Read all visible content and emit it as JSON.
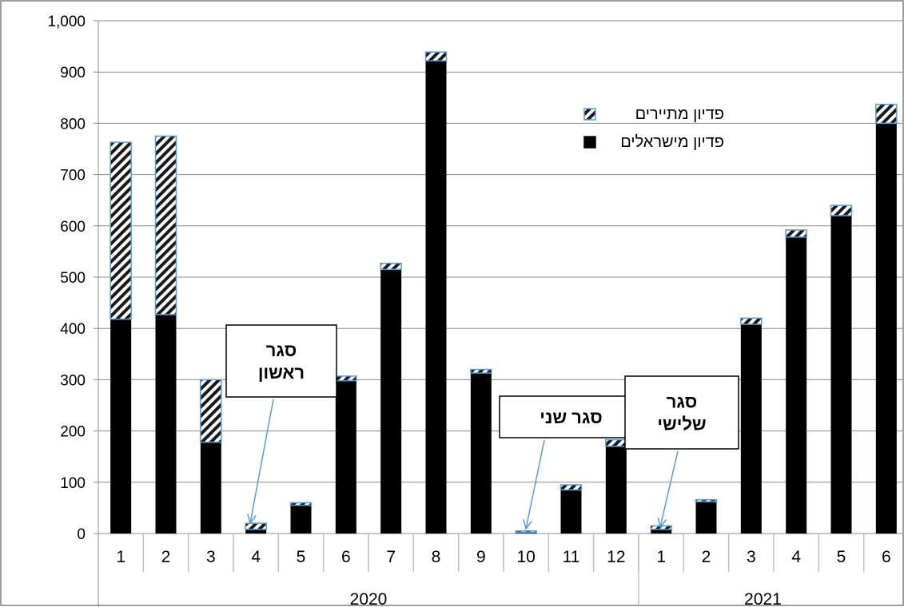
{
  "chart_data": {
    "type": "bar",
    "stacked": true,
    "categories": [
      "1",
      "2",
      "3",
      "4",
      "5",
      "6",
      "7",
      "8",
      "9",
      "10",
      "11",
      "12",
      "1",
      "2",
      "3",
      "4",
      "5",
      "6"
    ],
    "groups": [
      {
        "label": "2020",
        "count": 12
      },
      {
        "label": "2021",
        "count": 6
      }
    ],
    "series": [
      {
        "name": "פדיון מישראלים",
        "color": "#000000",
        "pattern": "solid",
        "values": [
          418,
          427,
          178,
          8,
          55,
          298,
          515,
          922,
          313,
          2,
          85,
          170,
          8,
          62,
          408,
          578,
          620,
          800
        ]
      },
      {
        "name": "פדיון מתיירים",
        "color": "#5b9bd5",
        "pattern": "diagonal-hatch",
        "values": [
          345,
          348,
          122,
          12,
          5,
          9,
          12,
          17,
          7,
          3,
          10,
          13,
          7,
          4,
          12,
          14,
          20,
          37
        ]
      }
    ],
    "yticks": [
      "0",
      "100",
      "200",
      "300",
      "400",
      "500",
      "600",
      "700",
      "800",
      "900",
      "1,000"
    ],
    "ylim": [
      0,
      1000
    ],
    "grid": true,
    "legend_position": "top-right",
    "annotations": [
      {
        "text_lines": [
          "סגר",
          "ראשון"
        ],
        "points_to_index": 3
      },
      {
        "text_lines": [
          "סגר שני"
        ],
        "points_to_index": 9
      },
      {
        "text_lines": [
          "סגר",
          "שלישי"
        ],
        "points_to_index": 12
      }
    ]
  }
}
